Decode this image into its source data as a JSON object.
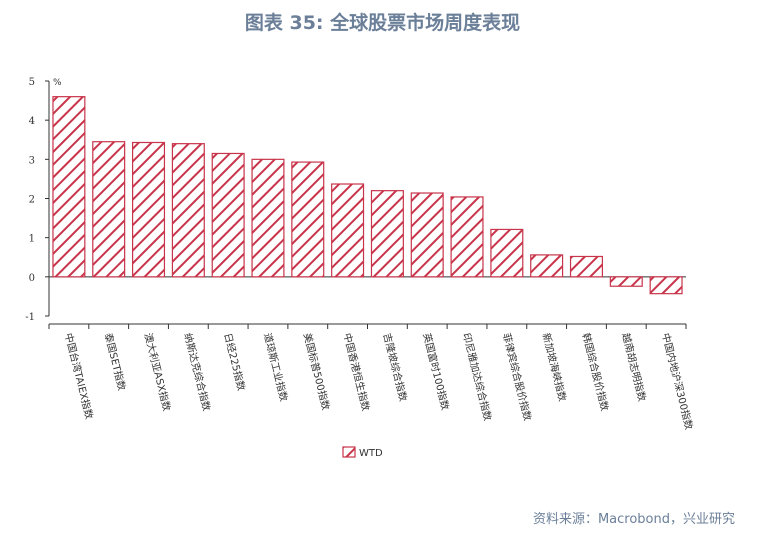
{
  "page": {
    "title": "图表 35: 全球股票市场周度表现",
    "source": "资料来源：Macrobond，兴业研究"
  },
  "chart_data": {
    "type": "bar",
    "title": "图表 35: 全球股票市场周度表现",
    "unit_label": "%",
    "xlabel": "",
    "ylabel": "",
    "ylim": [
      -1,
      5
    ],
    "yticks": [
      -1,
      0,
      1,
      2,
      3,
      4,
      5
    ],
    "grid": false,
    "legend_position": "bottom-center",
    "bar_fill": "hatched",
    "colors": {
      "bar_stroke": "#c8344a",
      "hatch": "#c8344a",
      "axis": "#333333"
    },
    "categories": [
      "中国台湾TAIEX指数",
      "泰国SET指数",
      "澳大利亚ASX指数",
      "纳斯达克综合指数",
      "日经225指数",
      "道琼斯工业指数",
      "美国标普500指数",
      "中国香港恒生指数",
      "吉隆坡综合指数",
      "英国富时100指数",
      "印尼雅加达综合指数",
      "菲律宾综合股价指数",
      "新加坡海峡指数",
      "韩国综合股价指数",
      "越南胡志明指数",
      "中国内地沪深300指数"
    ],
    "series": [
      {
        "name": "WTD",
        "values": [
          4.6,
          3.45,
          3.43,
          3.4,
          3.15,
          3.0,
          2.93,
          2.37,
          2.2,
          2.14,
          2.04,
          1.21,
          0.56,
          0.52,
          -0.24,
          -0.43
        ]
      }
    ]
  }
}
